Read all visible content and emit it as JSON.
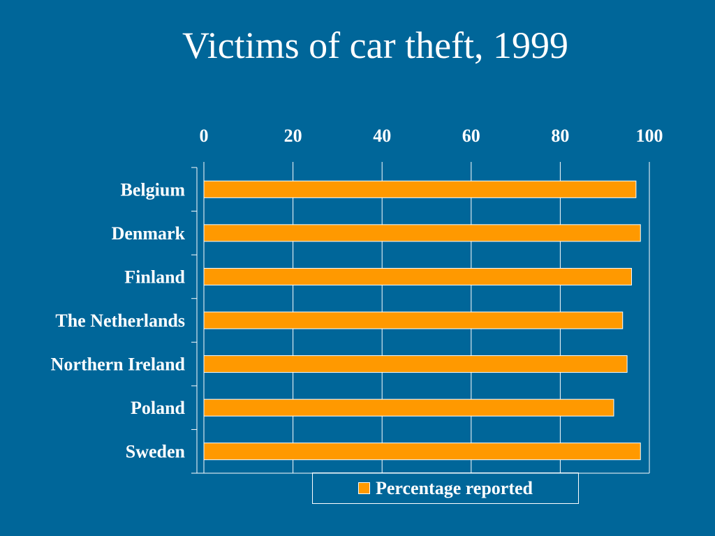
{
  "title": "Victims of car theft, 1999",
  "colors": {
    "background": "#006699",
    "bar": "#ff9900",
    "axis": "#ffffff"
  },
  "chart_data": {
    "type": "bar",
    "orientation": "horizontal",
    "title": "Victims of car theft, 1999",
    "categories": [
      "Belgium",
      "Denmark",
      "Finland",
      "The Netherlands",
      "Northern Ireland",
      "Poland",
      "Sweden"
    ],
    "series": [
      {
        "name": "Percentage reported",
        "values": [
          97,
          98,
          96,
          94,
          95,
          92,
          98
        ]
      }
    ],
    "xlim": [
      0,
      100
    ],
    "x_ticks": [
      0,
      20,
      40,
      60,
      80,
      100
    ],
    "x_axis_position": "top",
    "grid": true,
    "legend": "bottom",
    "xlabel": "",
    "ylabel": ""
  }
}
